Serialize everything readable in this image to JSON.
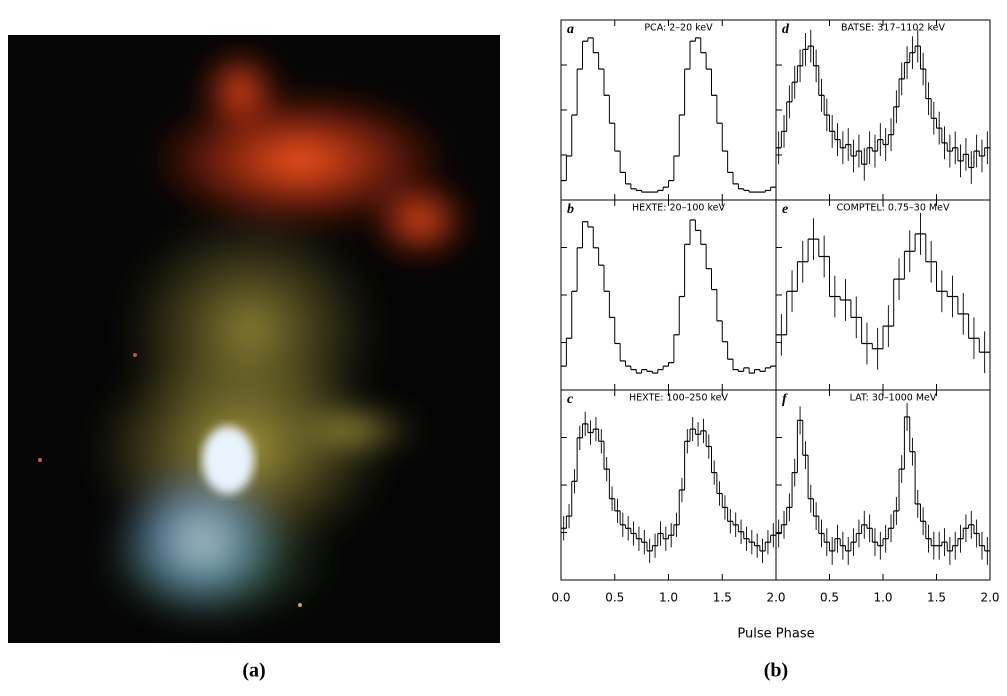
{
  "captions": [
    "(a)",
    "(b)"
  ],
  "xlabel": "Pulse Phase",
  "chart_data": [
    {
      "type": "step",
      "letter": "a",
      "label": "PCA: 2–20 keV",
      "xlim": [
        0,
        2
      ],
      "ylim": [
        0,
        100
      ],
      "xticks": [
        0,
        0.5,
        1,
        1.5,
        2
      ],
      "x": [
        0.025,
        0.075,
        0.125,
        0.175,
        0.225,
        0.275,
        0.325,
        0.375,
        0.425,
        0.475,
        0.525,
        0.575,
        0.625,
        0.675,
        0.725,
        0.775,
        0.825,
        0.875,
        0.925,
        0.975,
        1.025,
        1.075,
        1.125,
        1.175,
        1.225,
        1.275,
        1.325,
        1.375,
        1.425,
        1.475,
        1.525,
        1.575,
        1.625,
        1.675,
        1.725,
        1.775,
        1.825,
        1.875,
        1.925,
        1.975
      ],
      "values": [
        10,
        25,
        50,
        78,
        95,
        97,
        88,
        78,
        62,
        45,
        28,
        15,
        8,
        5,
        4,
        3,
        3,
        3,
        4,
        6,
        10,
        25,
        50,
        78,
        95,
        97,
        88,
        78,
        62,
        45,
        28,
        15,
        8,
        5,
        4,
        3,
        3,
        3,
        4,
        6
      ]
    },
    {
      "type": "step",
      "letter": "b",
      "label": "HEXTE: 20–100 keV",
      "xlim": [
        0,
        2
      ],
      "ylim": [
        0,
        100
      ],
      "xticks": [
        0,
        0.5,
        1,
        1.5,
        2
      ],
      "x": [
        0.025,
        0.075,
        0.125,
        0.175,
        0.225,
        0.275,
        0.325,
        0.375,
        0.425,
        0.475,
        0.525,
        0.575,
        0.625,
        0.675,
        0.725,
        0.775,
        0.825,
        0.875,
        0.925,
        0.975,
        1.025,
        1.075,
        1.125,
        1.175,
        1.225,
        1.275,
        1.325,
        1.375,
        1.425,
        1.475,
        1.525,
        1.575,
        1.625,
        1.675,
        1.725,
        1.775,
        1.825,
        1.875,
        1.925,
        1.975
      ],
      "values": [
        12,
        28,
        55,
        80,
        95,
        92,
        80,
        70,
        55,
        40,
        25,
        15,
        12,
        10,
        8,
        10,
        9,
        8,
        10,
        12,
        14,
        30,
        52,
        82,
        96,
        90,
        82,
        68,
        56,
        38,
        26,
        16,
        10,
        9,
        11,
        8,
        10,
        9,
        11,
        12
      ]
    },
    {
      "type": "step",
      "letter": "c",
      "label": "HEXTE: 100–250 keV",
      "xlim": [
        0,
        2
      ],
      "ylim": [
        0,
        100
      ],
      "xticks": [
        {
          "value": 0,
          "label": "0.0"
        },
        {
          "value": 0.5,
          "label": "0.5"
        },
        {
          "value": 1,
          "label": "1.0"
        },
        {
          "value": 1.5,
          "label": "1.5"
        },
        {
          "value": 2,
          "label": "2.0"
        }
      ],
      "x": [
        0.025,
        0.075,
        0.125,
        0.175,
        0.225,
        0.275,
        0.325,
        0.375,
        0.425,
        0.475,
        0.525,
        0.575,
        0.625,
        0.675,
        0.725,
        0.775,
        0.825,
        0.875,
        0.925,
        0.975,
        1.025,
        1.075,
        1.125,
        1.175,
        1.225,
        1.275,
        1.325,
        1.375,
        1.425,
        1.475,
        1.525,
        1.575,
        1.625,
        1.675,
        1.725,
        1.775,
        1.825,
        1.875,
        1.925,
        1.975
      ],
      "values": [
        28,
        35,
        55,
        80,
        88,
        83,
        85,
        78,
        62,
        45,
        38,
        30,
        28,
        25,
        22,
        20,
        15,
        18,
        25,
        22,
        24,
        30,
        50,
        78,
        85,
        82,
        84,
        75,
        60,
        48,
        40,
        32,
        30,
        26,
        22,
        20,
        18,
        15,
        20,
        24
      ],
      "errors": [
        7,
        7,
        7,
        7,
        7,
        7,
        7,
        7,
        7,
        7,
        7,
        7,
        7,
        7,
        7,
        7,
        7,
        7,
        7,
        7,
        7,
        7,
        7,
        7,
        7,
        7,
        7,
        7,
        7,
        7,
        7,
        7,
        7,
        7,
        7,
        7,
        7,
        7,
        7,
        7
      ]
    },
    {
      "type": "step",
      "letter": "d",
      "label": "BATSE: 317–1102 keV",
      "xlim": [
        0,
        2
      ],
      "ylim": [
        0,
        100
      ],
      "xticks": [
        0,
        0.5,
        1,
        1.5,
        2
      ],
      "x": [
        0.025,
        0.075,
        0.125,
        0.175,
        0.225,
        0.275,
        0.325,
        0.375,
        0.425,
        0.475,
        0.525,
        0.575,
        0.625,
        0.675,
        0.725,
        0.775,
        0.825,
        0.875,
        0.925,
        0.975,
        1.025,
        1.075,
        1.125,
        1.175,
        1.225,
        1.275,
        1.325,
        1.375,
        1.425,
        1.475,
        1.525,
        1.575,
        1.625,
        1.675,
        1.725,
        1.775,
        1.825,
        1.875,
        1.925,
        1.975
      ],
      "values": [
        30,
        40,
        58,
        70,
        80,
        90,
        92,
        80,
        62,
        50,
        40,
        35,
        30,
        32,
        25,
        28,
        20,
        30,
        28,
        35,
        32,
        38,
        55,
        72,
        82,
        88,
        92,
        78,
        60,
        48,
        42,
        33,
        28,
        30,
        22,
        26,
        18,
        28,
        25,
        30
      ],
      "errors": [
        10,
        10,
        10,
        10,
        10,
        10,
        10,
        10,
        10,
        10,
        10,
        10,
        10,
        10,
        10,
        10,
        10,
        10,
        10,
        10,
        10,
        10,
        10,
        10,
        10,
        10,
        10,
        10,
        10,
        10,
        10,
        10,
        10,
        10,
        10,
        10,
        10,
        10,
        10,
        10
      ]
    },
    {
      "type": "step",
      "letter": "e",
      "label": "COMPTEL: 0.75–30 MeV",
      "xlim": [
        0,
        2
      ],
      "ylim": [
        0,
        100
      ],
      "xticks": [
        0,
        0.5,
        1,
        1.5,
        2
      ],
      "x": [
        0.05,
        0.15,
        0.25,
        0.35,
        0.45,
        0.55,
        0.65,
        0.75,
        0.85,
        0.95,
        1.05,
        1.15,
        1.25,
        1.35,
        1.45,
        1.55,
        1.65,
        1.75,
        1.85,
        1.95
      ],
      "values": [
        30,
        55,
        72,
        85,
        75,
        52,
        50,
        40,
        25,
        22,
        35,
        62,
        78,
        88,
        72,
        55,
        52,
        42,
        28,
        20
      ],
      "errors": [
        12,
        12,
        12,
        12,
        12,
        12,
        12,
        12,
        12,
        12,
        12,
        12,
        12,
        12,
        12,
        12,
        12,
        12,
        12,
        12
      ]
    },
    {
      "type": "step",
      "letter": "f",
      "label": "LAT: 30–1000 MeV",
      "xlim": [
        0,
        2
      ],
      "ylim": [
        0,
        100
      ],
      "xticks": [
        0,
        {
          "value": 0.5,
          "label": "0.5"
        },
        {
          "value": 1,
          "label": "1.0"
        },
        {
          "value": 1.5,
          "label": "1.5"
        },
        {
          "value": 2,
          "label": "2.0"
        }
      ],
      "x": [
        0.025,
        0.075,
        0.125,
        0.175,
        0.225,
        0.275,
        0.325,
        0.375,
        0.425,
        0.475,
        0.525,
        0.575,
        0.625,
        0.675,
        0.725,
        0.775,
        0.825,
        0.875,
        0.925,
        0.975,
        1.025,
        1.075,
        1.125,
        1.175,
        1.225,
        1.275,
        1.325,
        1.375,
        1.425,
        1.475,
        1.525,
        1.575,
        1.625,
        1.675,
        1.725,
        1.775,
        1.825,
        1.875,
        1.925,
        1.975
      ],
      "values": [
        25,
        30,
        40,
        60,
        90,
        70,
        45,
        35,
        25,
        20,
        15,
        22,
        18,
        15,
        20,
        25,
        30,
        28,
        20,
        18,
        22,
        28,
        38,
        62,
        92,
        72,
        42,
        32,
        22,
        18,
        18,
        20,
        15,
        18,
        22,
        28,
        30,
        25,
        18,
        15
      ],
      "errors": [
        8,
        8,
        8,
        8,
        8,
        8,
        8,
        8,
        8,
        8,
        8,
        8,
        8,
        8,
        8,
        8,
        8,
        8,
        8,
        8,
        8,
        8,
        8,
        8,
        8,
        8,
        8,
        8,
        8,
        8,
        8,
        8,
        8,
        8,
        8,
        8,
        8,
        8,
        8,
        8
      ]
    }
  ]
}
